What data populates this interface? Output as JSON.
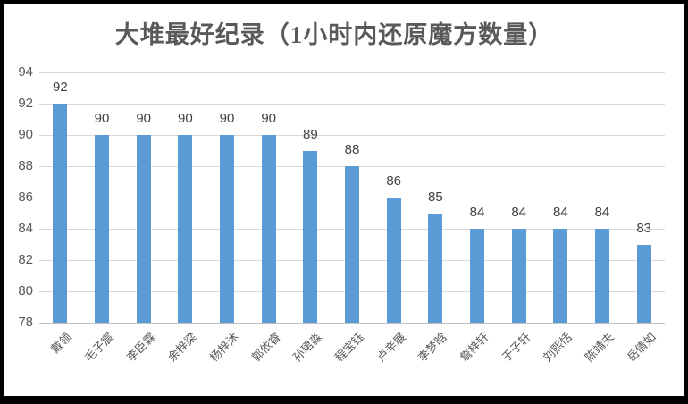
{
  "chart_data": {
    "type": "bar",
    "title": "大堆最好纪录（1小时内还原魔方数量）",
    "categories": [
      "戴领",
      "毛子宸",
      "李臣霖",
      "余梓梁",
      "杨梓沐",
      "郭依睿",
      "孙珺淼",
      "程宝钰",
      "卢辛展",
      "李梦晗",
      "詹梓轩",
      "于子轩",
      "刘熙恬",
      "陈靖夫",
      "岳倩如"
    ],
    "values": [
      92,
      90,
      90,
      90,
      90,
      90,
      89,
      88,
      86,
      85,
      84,
      84,
      84,
      84,
      83
    ],
    "xlabel": "",
    "ylabel": "",
    "ylim": [
      78,
      94
    ],
    "ytick_step": 2,
    "ytick_labels": [
      "78",
      "80",
      "82",
      "84",
      "86",
      "88",
      "90",
      "92",
      "94"
    ],
    "grid": true,
    "legend_position": "none",
    "data_labels": "outside-end",
    "category_label_rotation_deg": 45,
    "colors": {
      "bar": "#5B9BD5",
      "gridline": "#D9D9D9",
      "axis_line": "#BFBFBF",
      "title_text": "#595959",
      "tick_text": "#595959",
      "data_label_text": "#404040",
      "frame_border": "#000000",
      "background": "#FFFFFF"
    }
  }
}
